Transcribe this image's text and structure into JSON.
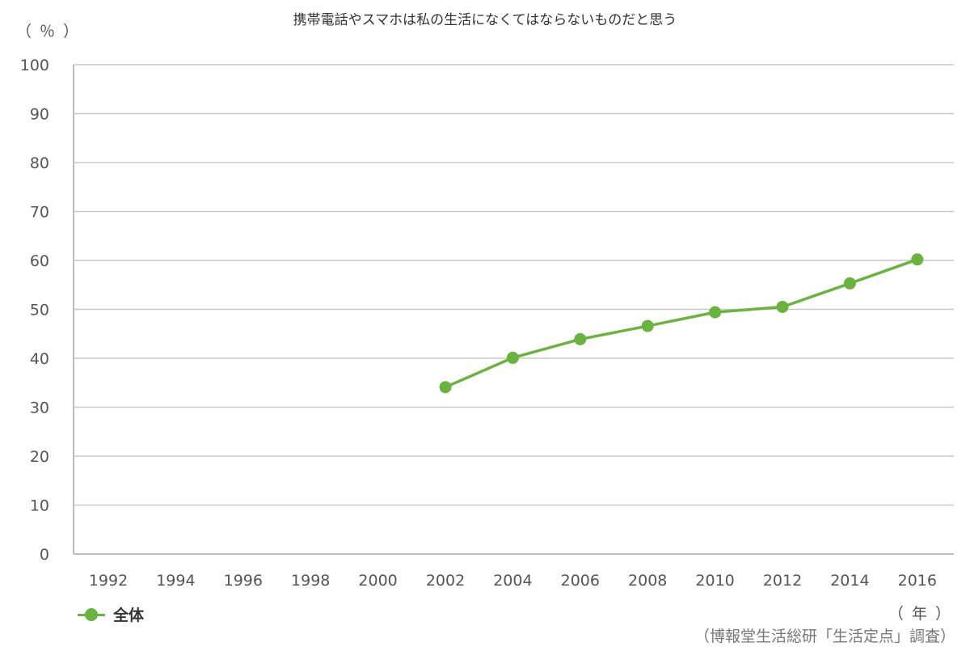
{
  "chart_data": {
    "type": "line",
    "title": "携帯電話やスマホは私の生活になくてはならないものだと思う",
    "ylabel": "（ ％ ）",
    "xlabel": "（ 年 ）",
    "source": "（博報堂生活総研「生活定点」調査）",
    "ylim": [
      0,
      100
    ],
    "yticks": [
      0,
      10,
      20,
      30,
      40,
      50,
      60,
      70,
      80,
      90,
      100
    ],
    "categories": [
      "1992",
      "1994",
      "1996",
      "1998",
      "2000",
      "2002",
      "2004",
      "2006",
      "2008",
      "2010",
      "2012",
      "2014",
      "2016"
    ],
    "series": [
      {
        "name": "全体",
        "color": "#6bb33f",
        "values": [
          null,
          null,
          null,
          null,
          null,
          34.1,
          40.1,
          43.9,
          46.6,
          49.4,
          50.5,
          55.3,
          60.2
        ]
      }
    ],
    "grid": true,
    "legend": "bottom-left"
  }
}
